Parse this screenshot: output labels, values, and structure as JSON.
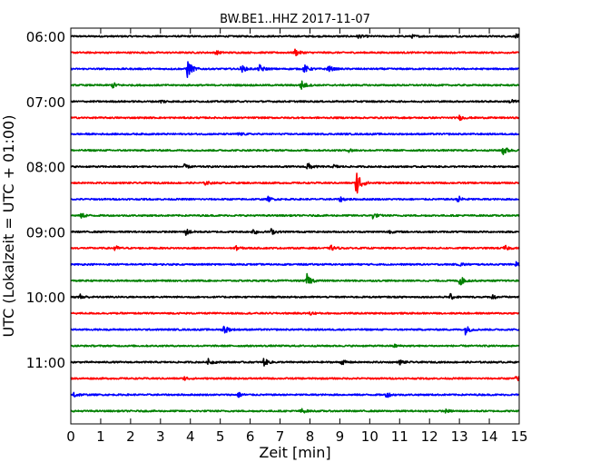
{
  "chart_data": {
    "type": "line",
    "title": "BW.BE1..HHZ 2017-11-07",
    "xlabel": "Zeit  [min]",
    "ylabel": "UTC (Lokalzeit = UTC + 01:00)",
    "xlim": [
      0,
      15
    ],
    "x_ticks": [
      "0",
      "1",
      "2",
      "3",
      "4",
      "5",
      "6",
      "7",
      "8",
      "9",
      "10",
      "11",
      "12",
      "13",
      "14",
      "15"
    ],
    "y_tick_labels": [
      "06:00",
      "07:00",
      "08:00",
      "09:00",
      "10:00",
      "11:00"
    ],
    "colors": [
      "#000000",
      "#ff0000",
      "#0000ff",
      "#008000"
    ],
    "series": [
      {
        "start": "06:00",
        "events": [
          {
            "t": 9.6,
            "a": 0.3
          },
          {
            "t": 11.4,
            "a": 0.22
          },
          {
            "t": 14.9,
            "a": 0.35
          }
        ]
      },
      {
        "start": "06:15",
        "events": [
          {
            "t": 4.85,
            "a": 0.3
          },
          {
            "t": 7.5,
            "a": 0.55
          }
        ]
      },
      {
        "start": "06:30",
        "events": [
          {
            "t": 3.9,
            "a": 1.6
          },
          {
            "t": 5.7,
            "a": 0.6
          },
          {
            "t": 6.3,
            "a": 0.7
          },
          {
            "t": 7.8,
            "a": 0.7
          },
          {
            "t": 8.6,
            "a": 0.55
          }
        ]
      },
      {
        "start": "06:45",
        "events": [
          {
            "t": 1.4,
            "a": 0.45
          },
          {
            "t": 7.7,
            "a": 0.8
          }
        ]
      },
      {
        "start": "07:00",
        "events": [
          {
            "t": 3.0,
            "a": 0.3
          },
          {
            "t": 14.7,
            "a": 0.45
          }
        ]
      },
      {
        "start": "07:15",
        "events": [
          {
            "t": 13.0,
            "a": 0.35
          }
        ]
      },
      {
        "start": "07:30",
        "events": [
          {
            "t": 5.6,
            "a": 0.25
          }
        ]
      },
      {
        "start": "07:45",
        "events": [
          {
            "t": 9.3,
            "a": 0.3
          },
          {
            "t": 14.45,
            "a": 0.9
          }
        ]
      },
      {
        "start": "08:00",
        "events": [
          {
            "t": 3.8,
            "a": 0.3
          },
          {
            "t": 7.9,
            "a": 0.7
          },
          {
            "t": 8.8,
            "a": 0.25
          }
        ]
      },
      {
        "start": "08:15",
        "events": [
          {
            "t": 4.5,
            "a": 0.3
          },
          {
            "t": 9.55,
            "a": 2.6
          }
        ]
      },
      {
        "start": "08:30",
        "events": [
          {
            "t": 6.6,
            "a": 0.35
          },
          {
            "t": 9.0,
            "a": 0.4
          },
          {
            "t": 12.95,
            "a": 0.55
          }
        ]
      },
      {
        "start": "08:45",
        "events": [
          {
            "t": 0.35,
            "a": 0.4
          },
          {
            "t": 10.1,
            "a": 0.45
          }
        ]
      },
      {
        "start": "09:00",
        "events": [
          {
            "t": 3.85,
            "a": 0.5
          },
          {
            "t": 6.1,
            "a": 0.5
          },
          {
            "t": 6.7,
            "a": 0.45
          },
          {
            "t": 10.6,
            "a": 0.3
          }
        ]
      },
      {
        "start": "09:15",
        "events": [
          {
            "t": 1.45,
            "a": 0.45
          },
          {
            "t": 5.5,
            "a": 0.35
          },
          {
            "t": 8.7,
            "a": 0.4
          },
          {
            "t": 14.5,
            "a": 0.45
          }
        ]
      },
      {
        "start": "09:30",
        "events": [
          {
            "t": 13.0,
            "a": 0.35
          },
          {
            "t": 14.9,
            "a": 0.4
          }
        ]
      },
      {
        "start": "09:45",
        "events": [
          {
            "t": 7.9,
            "a": 1.0
          },
          {
            "t": 13.0,
            "a": 0.9
          }
        ]
      },
      {
        "start": "10:00",
        "events": [
          {
            "t": 0.3,
            "a": 0.5
          },
          {
            "t": 12.7,
            "a": 0.4
          },
          {
            "t": 14.1,
            "a": 0.35
          }
        ]
      },
      {
        "start": "10:15",
        "events": [
          {
            "t": 8.0,
            "a": 0.3
          }
        ]
      },
      {
        "start": "10:30",
        "events": [
          {
            "t": 5.1,
            "a": 0.9
          },
          {
            "t": 13.2,
            "a": 0.7
          }
        ]
      },
      {
        "start": "10:45",
        "events": [
          {
            "t": 10.8,
            "a": 0.25
          }
        ]
      },
      {
        "start": "11:00",
        "events": [
          {
            "t": 4.6,
            "a": 0.45
          },
          {
            "t": 6.45,
            "a": 0.6
          },
          {
            "t": 9.05,
            "a": 0.4
          },
          {
            "t": 11.0,
            "a": 0.35
          }
        ]
      },
      {
        "start": "11:15",
        "events": [
          {
            "t": 3.8,
            "a": 0.3
          },
          {
            "t": 14.9,
            "a": 0.45
          }
        ]
      },
      {
        "start": "11:30",
        "events": [
          {
            "t": 0.1,
            "a": 0.5
          },
          {
            "t": 5.6,
            "a": 0.4
          },
          {
            "t": 10.55,
            "a": 0.45
          }
        ]
      },
      {
        "start": "11:45",
        "events": [
          {
            "t": 7.7,
            "a": 0.4
          },
          {
            "t": 12.5,
            "a": 0.3
          }
        ]
      }
    ]
  }
}
